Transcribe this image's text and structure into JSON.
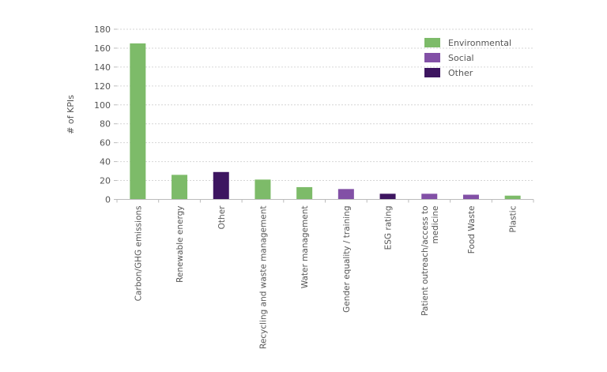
{
  "chart_data": {
    "type": "bar",
    "title": "",
    "xlabel": "",
    "ylabel": "# of KPIs",
    "ylim": [
      0,
      180
    ],
    "yticks": [
      0,
      20,
      40,
      60,
      80,
      100,
      120,
      140,
      160,
      180
    ],
    "grid": true,
    "legend_position": "top-right",
    "legend": [
      {
        "name": "Environmental",
        "color": "#7dbb69"
      },
      {
        "name": "Social",
        "color": "#8250a6"
      },
      {
        "name": "Other",
        "color": "#3d1560"
      }
    ],
    "categories": [
      {
        "label": [
          "Carbon/GHG emissions"
        ],
        "value": 165,
        "group": "Environmental"
      },
      {
        "label": [
          "Renewable energy"
        ],
        "value": 26,
        "group": "Environmental"
      },
      {
        "label": [
          "Other"
        ],
        "value": 29,
        "group": "Other"
      },
      {
        "label": [
          "Recycling and waste management"
        ],
        "value": 21,
        "group": "Environmental"
      },
      {
        "label": [
          "Water management"
        ],
        "value": 13,
        "group": "Environmental"
      },
      {
        "label": [
          "Gender equality / training"
        ],
        "value": 11,
        "group": "Social"
      },
      {
        "label": [
          "ESG rating"
        ],
        "value": 6,
        "group": "Other"
      },
      {
        "label": [
          "Patient outreach/access to",
          "medicine"
        ],
        "value": 6,
        "group": "Social"
      },
      {
        "label": [
          "Food Waste"
        ],
        "value": 5,
        "group": "Social"
      },
      {
        "label": [
          "Plastic"
        ],
        "value": 4,
        "group": "Environmental"
      }
    ]
  }
}
